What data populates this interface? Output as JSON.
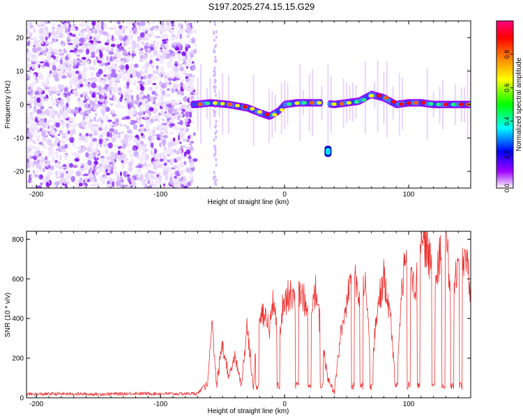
{
  "title": "S197.2025.274.15.15.G29",
  "chart_data": [
    {
      "type": "heatmap",
      "xlabel": "Height of straight line (km)",
      "ylabel": "Frequency (Hz)",
      "xlim": [
        -208,
        150
      ],
      "ylim": [
        -25,
        25
      ],
      "xticks": [
        -200,
        -100,
        0,
        100
      ],
      "yticks": [
        -20,
        -10,
        0,
        10,
        20
      ],
      "grid": false,
      "colorbar": {
        "label": "Normalized spectral amplitude",
        "range": [
          0,
          1
        ],
        "ticks": [
          "0.0",
          "0.2",
          "0.4",
          "0.6",
          "0.8"
        ],
        "colors": [
          "#ffffff",
          "#9f00ff",
          "#0000ff",
          "#00ffff",
          "#00ff00",
          "#ffff00",
          "#ff8000",
          "#ff0000",
          "#ff0080"
        ]
      },
      "noise_region_x": [
        -208,
        -72
      ],
      "ridge": {
        "x": [
          -72,
          -60,
          -45,
          -30,
          -20,
          -12,
          -5,
          0,
          10,
          20,
          30,
          40,
          50,
          60,
          70,
          80,
          90,
          100,
          110,
          120,
          130,
          140,
          150
        ],
        "y": [
          0,
          0.5,
          0,
          -1,
          -2.5,
          -3.5,
          -2,
          0,
          0.5,
          0.5,
          0.5,
          0,
          0.5,
          1,
          3,
          2,
          0,
          0.5,
          0.5,
          0,
          0,
          0,
          0
        ]
      },
      "ridge_gaps_x": [
        [
          30,
          36
        ]
      ],
      "isolated_blob": {
        "x": 35,
        "y": -14
      }
    },
    {
      "type": "line",
      "xlabel": "Height of straight line (km)",
      "ylabel": "SNR (10 * v/v)",
      "xlim": [
        -208,
        150
      ],
      "ylim": [
        0,
        840
      ],
      "xticks": [
        -200,
        -100,
        0,
        100
      ],
      "yticks": [
        0,
        200,
        400,
        600,
        800
      ],
      "grid": false,
      "line_color": "#ee3030",
      "series": [
        {
          "x": [
            -208,
            -180,
            -150,
            -120,
            -90,
            -70,
            -62,
            -58,
            -55,
            -50,
            -45,
            -40,
            -35,
            -30,
            -25,
            -22,
            -18,
            -12,
            -8,
            -5,
            -2,
            0,
            5,
            10,
            15,
            20,
            25,
            30,
            35,
            40,
            45,
            50,
            55,
            60,
            65,
            70,
            75,
            80,
            85,
            90,
            95,
            100,
            105,
            110,
            115,
            120,
            125,
            130,
            135,
            140,
            145,
            150
          ],
          "y": [
            18,
            20,
            18,
            22,
            20,
            22,
            80,
            380,
            60,
            280,
            100,
            220,
            60,
            380,
            40,
            420,
            440,
            380,
            520,
            300,
            460,
            520,
            540,
            560,
            520,
            400,
            550,
            320,
            100,
            30,
            320,
            480,
            720,
            520,
            600,
            120,
            480,
            620,
            460,
            40,
            620,
            720,
            560,
            780,
            800,
            600,
            760,
            800,
            500,
            700,
            760,
            540
          ]
        }
      ],
      "spike_drops_x": [
        -22,
        -5,
        10,
        20,
        30,
        55,
        62,
        70,
        90,
        100,
        108,
        120,
        128,
        135,
        142
      ]
    }
  ]
}
